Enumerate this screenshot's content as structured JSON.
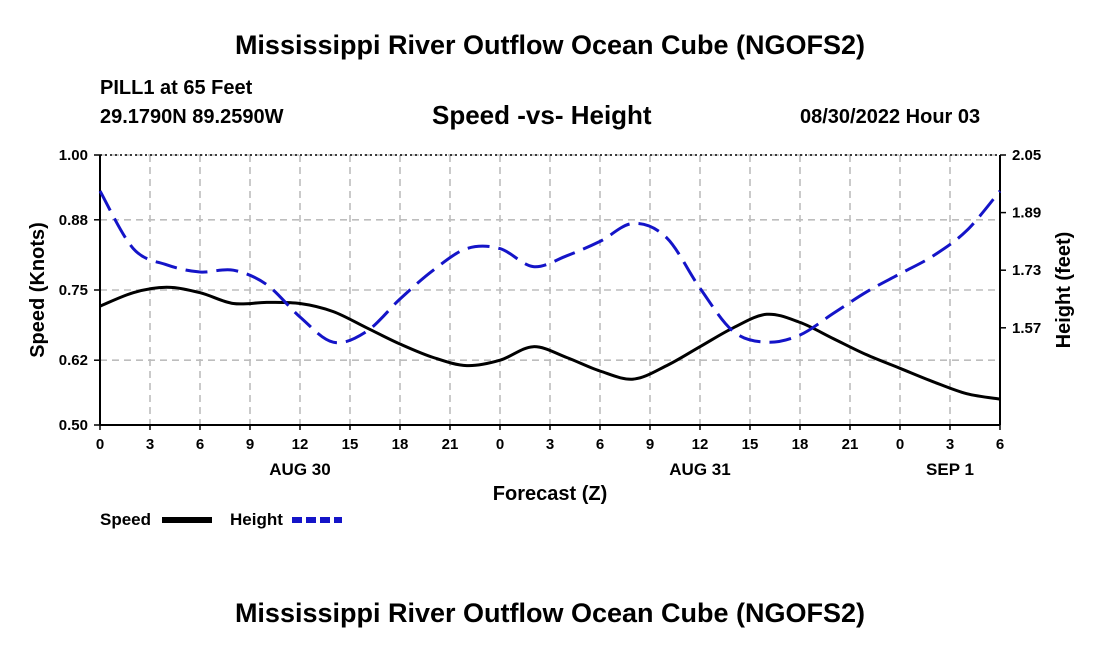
{
  "page": {
    "main_title": "Mississippi River Outflow Ocean Cube (NGOFS2)",
    "station": "PILL1 at 65 Feet",
    "coordinates": "29.1790N  89.2590W",
    "chart_title": "Speed -vs- Height",
    "datetime": "08/30/2022 Hour 03",
    "bottom_title": "Mississippi River Outflow Ocean Cube (NGOFS2)"
  },
  "chart_data": {
    "type": "line",
    "title": "Speed -vs- Height",
    "xlabel": "Forecast (Z)",
    "ylabel": "Speed (Knots)",
    "y2label": "Height (feet)",
    "grid": true,
    "x_range": [
      0,
      54
    ],
    "x_ticks": [
      0,
      3,
      6,
      9,
      12,
      15,
      18,
      21,
      24,
      27,
      30,
      33,
      36,
      39,
      42,
      45,
      48,
      51,
      54
    ],
    "x_tick_labels": [
      "0",
      "3",
      "6",
      "9",
      "12",
      "15",
      "18",
      "21",
      "0",
      "3",
      "6",
      "9",
      "12",
      "15",
      "18",
      "21",
      "0",
      "3",
      "6"
    ],
    "date_labels": [
      {
        "x": 12,
        "label": "AUG 30"
      },
      {
        "x": 36,
        "label": "AUG 31"
      },
      {
        "x": 51,
        "label": "SEP 1"
      }
    ],
    "y_left": {
      "range": [
        0.5,
        1.0
      ],
      "ticks": [
        0.5,
        0.62,
        0.75,
        0.88,
        1.0
      ],
      "tick_labels": [
        "0.50",
        "0.62",
        "0.75",
        "0.88",
        "1.00"
      ]
    },
    "y_right": {
      "range": [
        1.3,
        2.05
      ],
      "ticks": [
        1.57,
        1.73,
        1.89,
        2.05
      ],
      "tick_labels": [
        "1.57",
        "1.73",
        "1.89",
        "2.05"
      ]
    },
    "legend_position": "bottom-left",
    "series": [
      {
        "name": "Speed",
        "axis": "left",
        "color": "#000000",
        "dash": "solid",
        "x": [
          0,
          2,
          4,
          6,
          8,
          10,
          12,
          14,
          16,
          18,
          20,
          22,
          24,
          26,
          28,
          30,
          32,
          34,
          36,
          38,
          40,
          42,
          44,
          46,
          48,
          50,
          52,
          54
        ],
        "values": [
          0.72,
          0.745,
          0.755,
          0.745,
          0.725,
          0.727,
          0.725,
          0.71,
          0.68,
          0.65,
          0.625,
          0.61,
          0.62,
          0.645,
          0.625,
          0.6,
          0.585,
          0.61,
          0.645,
          0.68,
          0.705,
          0.69,
          0.66,
          0.63,
          0.605,
          0.58,
          0.558,
          0.548
        ]
      },
      {
        "name": "Height",
        "axis": "right",
        "color": "#1414c8",
        "dash": "dashed",
        "x": [
          0,
          2,
          4,
          6,
          8,
          10,
          12,
          14,
          16,
          18,
          20,
          22,
          24,
          26,
          28,
          30,
          32,
          34,
          36,
          38,
          40,
          42,
          44,
          46,
          48,
          50,
          52,
          54
        ],
        "values": [
          1.95,
          1.79,
          1.745,
          1.725,
          1.73,
          1.69,
          1.6,
          1.53,
          1.56,
          1.65,
          1.73,
          1.79,
          1.79,
          1.74,
          1.77,
          1.81,
          1.86,
          1.82,
          1.68,
          1.56,
          1.53,
          1.55,
          1.61,
          1.67,
          1.72,
          1.77,
          1.84,
          1.95
        ]
      }
    ]
  }
}
